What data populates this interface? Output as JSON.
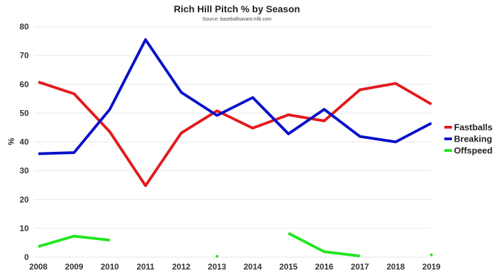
{
  "chart_data": {
    "type": "line",
    "title": "Rich Hill Pitch % by Season",
    "subtitle": "Source: baseballsavant.mlb.com",
    "xlabel": "",
    "ylabel": "%",
    "x": [
      2008,
      2009,
      2010,
      2011,
      2012,
      2013,
      2014,
      2015,
      2016,
      2017,
      2018,
      2019
    ],
    "xtick_labels": [
      "2008",
      "2009",
      "2010",
      "2011",
      "2012",
      "2013",
      "2014",
      "2015",
      "2016",
      "2017",
      "2018",
      "2019"
    ],
    "ylim": [
      0,
      80
    ],
    "ytick_labels": [
      "0",
      "10",
      "20",
      "30",
      "40",
      "50",
      "60",
      "70",
      "80"
    ],
    "grid": true,
    "legend": "right",
    "series": [
      {
        "name": "Fastballs",
        "color": "#e31a1c",
        "values": [
          60.8,
          56.7,
          43.5,
          24.8,
          43.1,
          50.8,
          44.8,
          49.4,
          47.3,
          58.1,
          60.3,
          53.1
        ]
      },
      {
        "name": "Breaking",
        "color": "#0a10c8",
        "values": [
          35.9,
          36.3,
          51.3,
          75.5,
          57.2,
          49.2,
          55.4,
          42.8,
          51.3,
          41.9,
          40.0,
          46.5
        ]
      },
      {
        "name": "Offspeed",
        "color": "#22e61e",
        "values": [
          3.7,
          7.3,
          5.9,
          null,
          null,
          0.3,
          null,
          8.3,
          1.9,
          0.4,
          null,
          0.8
        ]
      }
    ]
  }
}
